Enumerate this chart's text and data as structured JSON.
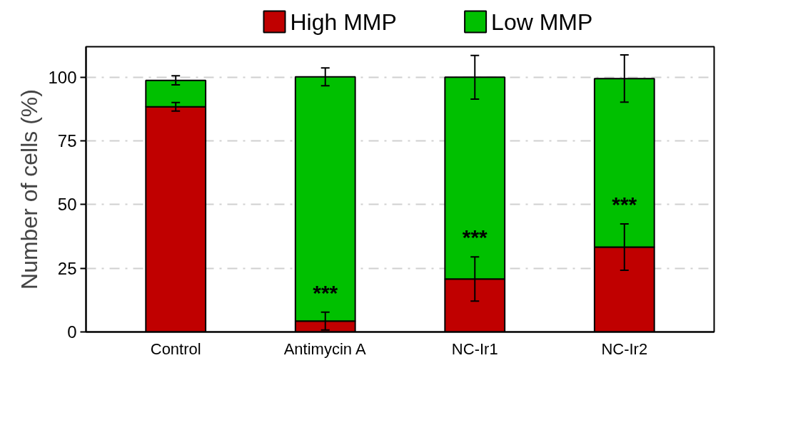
{
  "chart_data": {
    "type": "bar",
    "stacked": true,
    "ylabel": "Number of cells (%)",
    "categories": [
      "Control",
      "Antimycin A",
      "NC-Ir1",
      "NC-Ir2"
    ],
    "series": [
      {
        "name": "High MMP",
        "color": "#c00000",
        "values": [
          88.4,
          4.3,
          20.8,
          33.3
        ],
        "errors": [
          1.7,
          3.5,
          8.7,
          9.1
        ]
      },
      {
        "name": "Low MMP",
        "color": "#00c000",
        "values": [
          10.4,
          95.9,
          79.2,
          66.2
        ],
        "errors": [
          1.8,
          3.5,
          8.6,
          9.3
        ]
      }
    ],
    "annotations": [
      "***",
      "***",
      "***"
    ],
    "ylim": [
      0,
      112
    ],
    "yticks": [
      0,
      25,
      50,
      75,
      100
    ],
    "grid": "y",
    "legend": "top"
  }
}
